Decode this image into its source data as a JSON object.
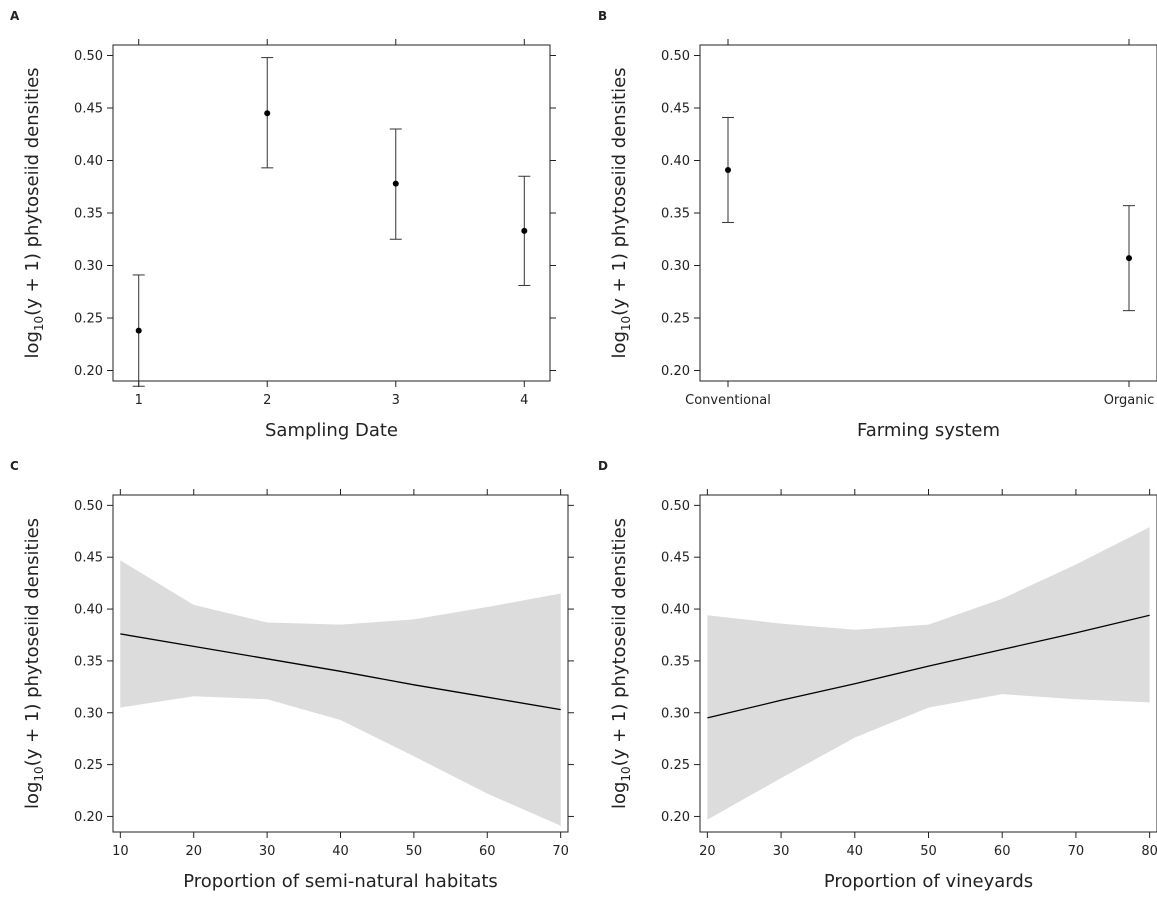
{
  "chart_data": [
    {
      "panel": "A",
      "type": "scatter",
      "subtype": "point-errorbar",
      "xlabel": "Sampling Date",
      "ylabel": {
        "main": "log",
        "sub": "10",
        "rest": "(y + 1) phytoseiid densities"
      },
      "ylim": [
        0.19,
        0.51
      ],
      "yticks": [
        0.2,
        0.25,
        0.3,
        0.35,
        0.4,
        0.45,
        0.5
      ],
      "ytick_labels": [
        "0.20",
        "0.25",
        "0.30",
        "0.35",
        "0.40",
        "0.45",
        "0.50"
      ],
      "xlim": [
        0.8,
        4.2
      ],
      "xticks": [
        1,
        2,
        3,
        4
      ],
      "xtick_labels": [
        "1",
        "2",
        "3",
        "4"
      ],
      "points": [
        {
          "x": 1,
          "y": 0.238,
          "lower": 0.185,
          "upper": 0.291
        },
        {
          "x": 2,
          "y": 0.445,
          "lower": 0.393,
          "upper": 0.498
        },
        {
          "x": 3,
          "y": 0.378,
          "lower": 0.325,
          "upper": 0.43
        },
        {
          "x": 4,
          "y": 0.333,
          "lower": 0.281,
          "upper": 0.385
        }
      ]
    },
    {
      "panel": "B",
      "type": "scatter",
      "subtype": "point-errorbar",
      "xlabel": "Farming system",
      "ylabel": {
        "main": "log",
        "sub": "10",
        "rest": "(y + 1) phytoseiid densities"
      },
      "ylim": [
        0.19,
        0.51
      ],
      "yticks": [
        0.2,
        0.25,
        0.3,
        0.35,
        0.4,
        0.45,
        0.5
      ],
      "ytick_labels": [
        "0.20",
        "0.25",
        "0.30",
        "0.35",
        "0.40",
        "0.45",
        "0.50"
      ],
      "categories": [
        "Conventional",
        "Organic"
      ],
      "points": [
        {
          "category": "Conventional",
          "y": 0.391,
          "lower": 0.341,
          "upper": 0.441
        },
        {
          "category": "Organic",
          "y": 0.307,
          "lower": 0.257,
          "upper": 0.357
        }
      ]
    },
    {
      "panel": "C",
      "type": "line",
      "subtype": "fit-with-confidence-band",
      "xlabel": "Proportion of semi-natural habitats",
      "ylabel": {
        "main": "log",
        "sub": "10",
        "rest": "(y + 1) phytoseiid densities"
      },
      "ylim": [
        0.185,
        0.51
      ],
      "yticks": [
        0.2,
        0.25,
        0.3,
        0.35,
        0.4,
        0.45,
        0.5
      ],
      "ytick_labels": [
        "0.20",
        "0.25",
        "0.30",
        "0.35",
        "0.40",
        "0.45",
        "0.50"
      ],
      "xlim": [
        9,
        71
      ],
      "xticks": [
        10,
        20,
        30,
        40,
        50,
        60,
        70
      ],
      "xtick_labels": [
        "10",
        "20",
        "30",
        "40",
        "50",
        "60",
        "70"
      ],
      "x": [
        10,
        20,
        30,
        40,
        50,
        60,
        70
      ],
      "fit": [
        0.376,
        0.364,
        0.352,
        0.34,
        0.327,
        0.315,
        0.303
      ],
      "upper": [
        0.447,
        0.404,
        0.387,
        0.385,
        0.39,
        0.402,
        0.415
      ],
      "lower": [
        0.305,
        0.316,
        0.313,
        0.293,
        0.258,
        0.222,
        0.191
      ]
    },
    {
      "panel": "D",
      "type": "line",
      "subtype": "fit-with-confidence-band",
      "xlabel": "Proportion of vineyards",
      "ylabel": {
        "main": "log",
        "sub": "10",
        "rest": "(y + 1) phytoseiid densities"
      },
      "ylim": [
        0.185,
        0.51
      ],
      "yticks": [
        0.2,
        0.25,
        0.3,
        0.35,
        0.4,
        0.45,
        0.5
      ],
      "ytick_labels": [
        "0.20",
        "0.25",
        "0.30",
        "0.35",
        "0.40",
        "0.45",
        "0.50"
      ],
      "xlim": [
        19,
        81
      ],
      "xticks": [
        20,
        30,
        40,
        50,
        60,
        70,
        80
      ],
      "xtick_labels": [
        "20",
        "30",
        "40",
        "50",
        "60",
        "70",
        "80"
      ],
      "x": [
        20,
        30,
        40,
        50,
        60,
        70,
        80
      ],
      "fit": [
        0.295,
        0.312,
        0.328,
        0.345,
        0.361,
        0.377,
        0.394
      ],
      "upper": [
        0.394,
        0.386,
        0.38,
        0.385,
        0.41,
        0.443,
        0.479
      ],
      "lower": [
        0.197,
        0.237,
        0.276,
        0.305,
        0.318,
        0.313,
        0.31
      ]
    }
  ]
}
